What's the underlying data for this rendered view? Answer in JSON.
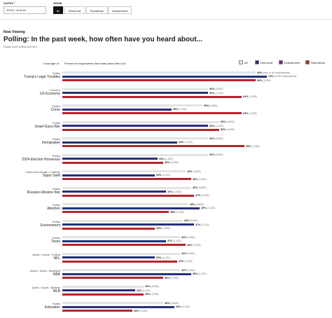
{
  "filters": {
    "dates_label": "DATES",
    "dates_info_icon": "info-icon",
    "date_range": "2/9/24 - 6/14/24",
    "show_label": "SHOW",
    "show_options": [
      "All",
      "Democrat",
      "Republican",
      "Independent"
    ],
    "show_selected": "All"
  },
  "header": {
    "now_viewing": "Now Viewing",
    "title": "Polling: In the past week, how often have you heard about...",
    "subtitle": "Explain some polling stuff here."
  },
  "table": {
    "coverage_header": "Coverage of:",
    "percent_header": "Percent of respondents that heard about this a lot"
  },
  "legend": [
    {
      "name": "All",
      "color": "#e3e3e3"
    },
    {
      "name": "Democrat",
      "color": "#25317b"
    },
    {
      "name": "Independent",
      "color": "#7a2a78"
    },
    {
      "name": "Republican",
      "color": "#b5252b"
    }
  ],
  "chart_data": {
    "type": "bar",
    "orientation": "horizontal",
    "title": "Polling: In the past week, how often have you heard about...",
    "xlabel": "Percent of respondents that heard about this a lot",
    "xlim": [
      0,
      100
    ],
    "legend_position": "top-right",
    "series_names": [
      "All",
      "Democrat",
      "Republican"
    ],
    "categories": [
      {
        "category": "Politics",
        "name": "Trump's Legal Troubles",
        "all": 69,
        "dem": 73,
        "rep": 69,
        "all_n": "avg. of all respondents",
        "dem_n": "1,620 respondents",
        "rep_n": "1,099"
      },
      {
        "category": "Economy",
        "name": "US Economy",
        "all": 52,
        "dem": 52,
        "rep": 64,
        "all_n": "3,800",
        "dem_n": "1,120",
        "rep_n": "1,099"
      },
      {
        "category": "Politics",
        "name": "Crime",
        "all": 50,
        "dem": 39,
        "rep": 64,
        "all_n": "3,800",
        "dem_n": "1,120",
        "rep_n": "1,099"
      },
      {
        "category": "Politics",
        "name": "Israel-Gaza War",
        "all": 56,
        "dem": 52,
        "rep": 56,
        "all_n": "3,800",
        "dem_n": "1,120",
        "rep_n": "1,099"
      },
      {
        "category": "Politics",
        "name": "Immigration",
        "all": 52,
        "dem": 41,
        "rep": 65,
        "all_n": "3,800",
        "dem_n": "1,120",
        "rep_n": "1,099"
      },
      {
        "category": "Politics",
        "name": "2024 Election Horserace",
        "all": 52,
        "dem": 34,
        "rep": 36,
        "all_n": "3,800",
        "dem_n": "1,120",
        "rep_n": "1,099"
      },
      {
        "category": "Culture and Lifestyle > Celebrity",
        "name": "Taylor Swift",
        "all": 44,
        "dem": 33,
        "rep": 46,
        "all_n": "3,800",
        "dem_n": "1,120",
        "rep_n": "1,099"
      },
      {
        "category": "Politics",
        "name": "Russian-Ukraine War",
        "all": 46,
        "dem": 37,
        "rep": 47,
        "all_n": "3,800",
        "dem_n": "1,120",
        "rep_n": "1,099"
      },
      {
        "category": "Politics",
        "name": "Abortion",
        "all": 45,
        "dem": 49,
        "rep": 38,
        "all_n": "3,800",
        "dem_n": "1,120",
        "rep_n": "1,099"
      },
      {
        "category": "Politics",
        "name": "Environment",
        "all": 43,
        "dem": 47,
        "rep": 33,
        "all_n": "3,800",
        "dem_n": "1,120",
        "rep_n": "1,099"
      },
      {
        "category": "Politics",
        "name": "Taxes",
        "all": 42,
        "dem": 37,
        "rep": 44,
        "all_n": "3,800",
        "dem_n": "1,120",
        "rep_n": "1,099"
      },
      {
        "category": "Sports > Sports - Football",
        "name": "NFL",
        "all": 42,
        "dem": 33,
        "rep": 41,
        "all_n": "3,800",
        "dem_n": "1,120",
        "rep_n": "1,099"
      },
      {
        "category": "Sports > Sports - Basketball",
        "name": "NBA",
        "all": 42,
        "dem": 46,
        "rep": 36,
        "all_n": "3,800",
        "dem_n": "1,120",
        "rep_n": "1,099"
      },
      {
        "category": "Sports > Sports - Baseball",
        "name": "MLB",
        "all": 29,
        "dem": 26,
        "rep": 29,
        "all_n": "3,800",
        "dem_n": "1,120",
        "rep_n": "1,099"
      },
      {
        "category": "Politics",
        "name": "Education",
        "all": 36,
        "dem": 40,
        "rep": 25,
        "all_n": "3,800",
        "dem_n": "1,120",
        "rep_n": "1,099"
      }
    ]
  }
}
